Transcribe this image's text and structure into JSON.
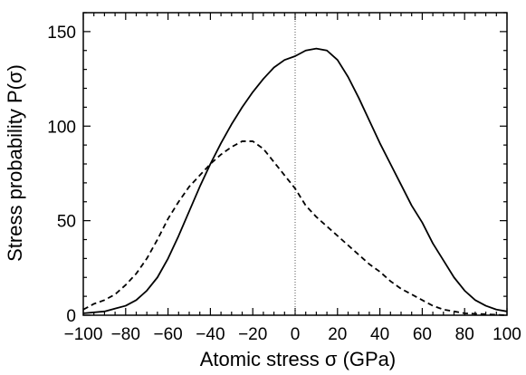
{
  "chart_data": {
    "type": "line",
    "title": "",
    "xlabel": "Atomic stress σ (GPa)",
    "ylabel": "Stress probability P(σ)",
    "xlim": [
      -100,
      100
    ],
    "ylim": [
      0,
      160
    ],
    "x_ticks": [
      -100,
      -80,
      -60,
      -40,
      -20,
      0,
      20,
      40,
      60,
      80,
      100
    ],
    "x_tick_labels": [
      "−100",
      "−80",
      "−60",
      "−40",
      "−20",
      "0",
      "20",
      "40",
      "60",
      "80",
      "100"
    ],
    "y_ticks": [
      0,
      50,
      100,
      150
    ],
    "y_tick_labels": [
      "0",
      "50",
      "100",
      "150"
    ],
    "reference_line": {
      "x": 0,
      "style": "dotted"
    },
    "grid": false,
    "legend": "none",
    "series": [
      {
        "style": "solid",
        "x": [
          -100,
          -90,
          -80,
          -75,
          -70,
          -65,
          -60,
          -55,
          -50,
          -45,
          -40,
          -35,
          -30,
          -25,
          -20,
          -15,
          -10,
          -5,
          0,
          5,
          10,
          15,
          20,
          25,
          30,
          35,
          40,
          45,
          50,
          55,
          60,
          65,
          70,
          75,
          80,
          85,
          90,
          95,
          100
        ],
        "values": [
          1,
          2,
          5,
          8,
          13,
          20,
          30,
          42,
          55,
          68,
          80,
          91,
          101,
          110,
          118,
          125,
          131,
          135,
          137,
          140,
          141,
          140,
          135,
          126,
          115,
          103,
          91,
          80,
          69,
          58,
          49,
          38,
          29,
          20,
          13,
          8,
          5,
          3,
          2
        ]
      },
      {
        "style": "dashed",
        "x": [
          -100,
          -95,
          -90,
          -85,
          -80,
          -75,
          -70,
          -65,
          -60,
          -55,
          -50,
          -45,
          -40,
          -35,
          -30,
          -25,
          -20,
          -15,
          -10,
          -5,
          0,
          5,
          10,
          15,
          20,
          25,
          30,
          35,
          40,
          45,
          50,
          55,
          60,
          65,
          70,
          75,
          80,
          90,
          100
        ],
        "values": [
          3,
          6,
          8,
          11,
          16,
          22,
          30,
          40,
          51,
          60,
          68,
          74,
          80,
          85,
          89,
          92,
          92,
          88,
          81,
          74,
          67,
          58,
          52,
          47,
          42,
          37,
          32,
          27,
          23,
          18,
          14,
          11,
          8,
          5,
          3,
          2,
          1,
          0.5,
          0
        ]
      }
    ]
  }
}
